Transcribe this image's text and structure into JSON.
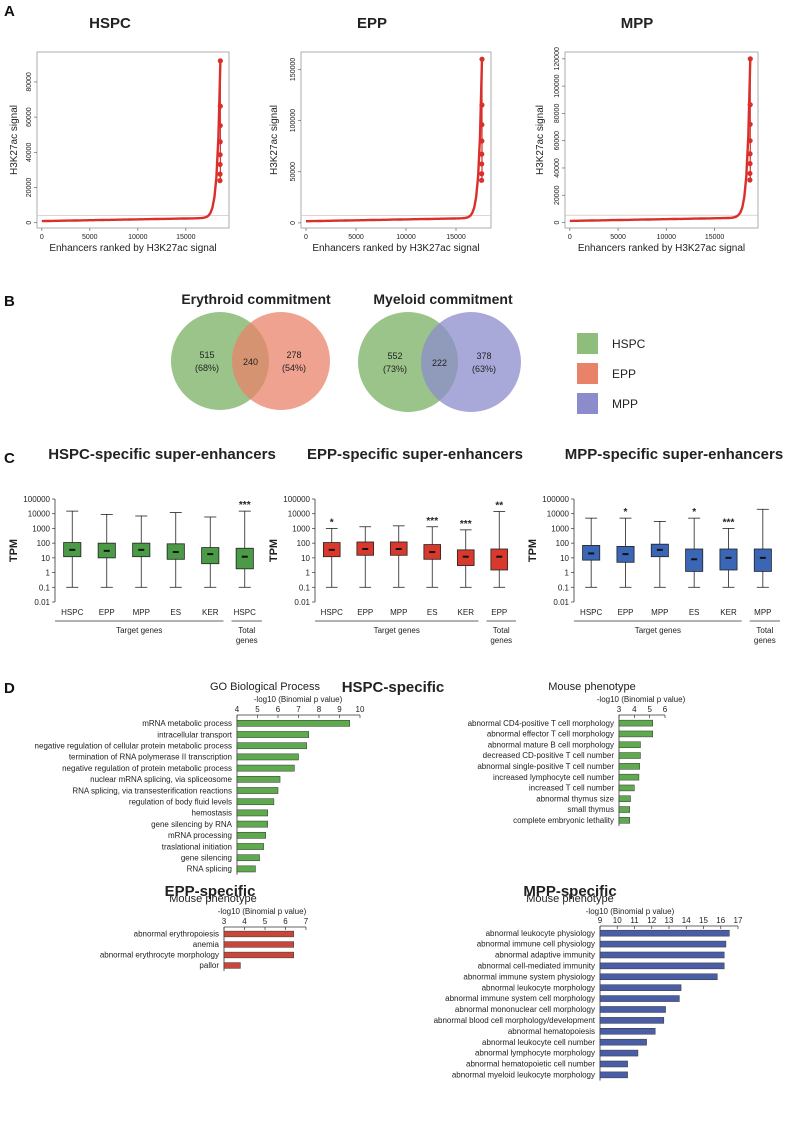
{
  "panel_labels": {
    "a": "A",
    "b": "B",
    "c": "C",
    "d": "D"
  },
  "chart_data": [
    {
      "id": "A-HSPC",
      "type": "scatter",
      "title": "HSPC",
      "xlabel": "Enhancers ranked by H3K27ac signal",
      "ylabel": "H3K27ac signal",
      "xticks": [
        0,
        5000,
        10000,
        15000
      ],
      "xlim": [
        -500,
        19500
      ],
      "yticks": [
        0,
        20000,
        40000,
        60000,
        80000
      ],
      "ylim": [
        -3000,
        97000
      ],
      "n": 18600,
      "max": 92000,
      "color": "#d9302c"
    },
    {
      "id": "A-EPP",
      "type": "scatter",
      "title": "EPP",
      "xlabel": "Enhancers ranked by H3K27ac signal",
      "ylabel": "H3K27ac signal",
      "xticks": [
        0,
        5000,
        10000,
        15000
      ],
      "xlim": [
        -500,
        18500
      ],
      "yticks": [
        0,
        50000,
        100000,
        150000
      ],
      "ylim": [
        -5000,
        167000
      ],
      "n": 17600,
      "max": 160000,
      "color": "#d9302c"
    },
    {
      "id": "A-MPP",
      "type": "scatter",
      "title": "MPP",
      "xlabel": "Enhancers ranked by H3K27ac signal",
      "ylabel": "H3K27ac signal",
      "xticks": [
        0,
        5000,
        10000,
        15000
      ],
      "xlim": [
        -500,
        19500
      ],
      "yticks": [
        0,
        20000,
        40000,
        60000,
        80000,
        100000,
        120000
      ],
      "ylim": [
        -4000,
        125000
      ],
      "n": 18700,
      "max": 120000,
      "color": "#d9302c"
    },
    {
      "id": "B-erythroid",
      "type": "venn",
      "title": "Erythroid commitment",
      "sets": [
        {
          "name": "HSPC",
          "count": "515",
          "pct": "(68%)",
          "color": "#8fbe7c"
        },
        {
          "name": "EPP",
          "count": "278",
          "pct": "(54%)",
          "color": "#e8836a"
        }
      ],
      "overlap": "240"
    },
    {
      "id": "B-myeloid",
      "type": "venn",
      "title": "Myeloid commitment",
      "sets": [
        {
          "name": "HSPC",
          "count": "552",
          "pct": "(73%)",
          "color": "#8fbe7c"
        },
        {
          "name": "MPP",
          "count": "378",
          "pct": "(63%)",
          "color": "#8c8ccc"
        }
      ],
      "overlap": "222"
    },
    {
      "id": "C-HSPC",
      "type": "boxplot",
      "title": "HSPC-specific super-enhancers",
      "ylabel": "TPM",
      "ylog": true,
      "yticks": [
        "0.01",
        "0.1",
        "1",
        "10",
        "100",
        "1000",
        "10000",
        "100000"
      ],
      "color": "#4a9a47",
      "boxes": [
        {
          "label": "HSPC",
          "q1": 12,
          "median": 35,
          "q3": 110,
          "min": 0.1,
          "max": 15000,
          "sig": ""
        },
        {
          "label": "EPP",
          "q1": 10,
          "median": 30,
          "q3": 100,
          "min": 0.1,
          "max": 9000,
          "sig": ""
        },
        {
          "label": "MPP",
          "q1": 12,
          "median": 35,
          "q3": 100,
          "min": 0.1,
          "max": 7000,
          "sig": ""
        },
        {
          "label": "ES",
          "q1": 8,
          "median": 25,
          "q3": 90,
          "min": 0.1,
          "max": 12000,
          "sig": ""
        },
        {
          "label": "KER",
          "q1": 4,
          "median": 18,
          "q3": 50,
          "min": 0.1,
          "max": 6000,
          "sig": ""
        },
        {
          "label": "HSPC",
          "q1": 1.8,
          "median": 12,
          "q3": 45,
          "min": 0.1,
          "max": 15000,
          "sig": "***"
        }
      ],
      "group_label": "Target genes",
      "total_label": "Total genes"
    },
    {
      "id": "C-EPP",
      "type": "boxplot",
      "title": "EPP-specific super-enhancers",
      "ylabel": "TPM",
      "ylog": true,
      "yticks": [
        "0.01",
        "0.1",
        "1",
        "10",
        "100",
        "1000",
        "10000",
        "100000"
      ],
      "color": "#d8392c",
      "boxes": [
        {
          "label": "HSPC",
          "q1": 12,
          "median": 35,
          "q3": 110,
          "min": 0.1,
          "max": 1000,
          "sig": "*"
        },
        {
          "label": "EPP",
          "q1": 15,
          "median": 40,
          "q3": 120,
          "min": 0.1,
          "max": 1300,
          "sig": ""
        },
        {
          "label": "MPP",
          "q1": 15,
          "median": 40,
          "q3": 120,
          "min": 0.1,
          "max": 1500,
          "sig": ""
        },
        {
          "label": "ES",
          "q1": 8,
          "median": 25,
          "q3": 80,
          "min": 0.1,
          "max": 1300,
          "sig": "***"
        },
        {
          "label": "KER",
          "q1": 3,
          "median": 12,
          "q3": 35,
          "min": 0.1,
          "max": 800,
          "sig": "***"
        },
        {
          "label": "EPP",
          "q1": 1.5,
          "median": 12,
          "q3": 40,
          "min": 0.1,
          "max": 14000,
          "sig": "**"
        }
      ],
      "group_label": "Target genes",
      "total_label": "Total genes"
    },
    {
      "id": "C-MPP",
      "type": "boxplot",
      "title": "MPP-specific super-enhancers",
      "ylabel": "TPM",
      "ylog": true,
      "yticks": [
        "0.01",
        "0.1",
        "1",
        "10",
        "100",
        "1000",
        "10000",
        "100000"
      ],
      "color": "#3a66b5",
      "boxes": [
        {
          "label": "HSPC",
          "q1": 7,
          "median": 20,
          "q3": 70,
          "min": 0.1,
          "max": 5000,
          "sig": ""
        },
        {
          "label": "EPP",
          "q1": 5,
          "median": 18,
          "q3": 60,
          "min": 0.1,
          "max": 5000,
          "sig": "*"
        },
        {
          "label": "MPP",
          "q1": 12,
          "median": 35,
          "q3": 85,
          "min": 0.1,
          "max": 3000,
          "sig": ""
        },
        {
          "label": "ES",
          "q1": 1.2,
          "median": 8,
          "q3": 40,
          "min": 0.1,
          "max": 5000,
          "sig": "*"
        },
        {
          "label": "KER",
          "q1": 1.5,
          "median": 10,
          "q3": 40,
          "min": 0.1,
          "max": 1000,
          "sig": "***"
        },
        {
          "label": "MPP",
          "q1": 1.2,
          "median": 10,
          "q3": 40,
          "min": 0.1,
          "max": 20000,
          "sig": ""
        }
      ],
      "group_label": "Target genes",
      "total_label": "Total genes"
    },
    {
      "id": "D-HSPC-GO",
      "type": "bar",
      "orientation": "horizontal",
      "title": "GO Biological Process",
      "xlabel": "-log10 (Binomial p value)",
      "xticks": [
        4,
        5,
        6,
        7,
        8,
        9,
        10
      ],
      "xlim": [
        4,
        10
      ],
      "color": "#5faa4e",
      "categories": [
        "mRNA metabolic process",
        "intracellular transport",
        "negative regulation of cellular protein metabolic process",
        "termination of RNA polymerase II transcription",
        "negative regulation of  protein metabolic process",
        "nuclear mRNA splicing, via spliceosome",
        "RNA splicing, via transesterification reactions",
        "regulation of body fluid levels",
        "hemostasis",
        "gene silencing by RNA",
        "mRNA processing",
        "traslational initiation",
        "gene silencing",
        "RNA splicing"
      ],
      "values": [
        9.5,
        7.5,
        7.4,
        7.0,
        6.8,
        6.1,
        6.0,
        5.8,
        5.5,
        5.5,
        5.4,
        5.3,
        5.1,
        4.9
      ]
    },
    {
      "id": "D-HSPC-MP",
      "type": "bar",
      "orientation": "horizontal",
      "title": "Mouse phenotype",
      "xlabel": "-log10 (Binomial p value)",
      "xticks": [
        3,
        4,
        5,
        6
      ],
      "xlim": [
        3,
        6
      ],
      "color": "#5faa4e",
      "categories": [
        "abnormal CD4-positive T cell morphology",
        "abnormal effector T cell morphology",
        "abnormal mature B cell morphology",
        "decreased CD-positive T cell number",
        "abnormal single-positive T cell number",
        "increased lymphocyte cell number",
        "increased T cell number",
        "abnormal thymus size",
        "small thymus",
        "complete embryonic lethality"
      ],
      "values": [
        5.2,
        5.2,
        4.4,
        4.4,
        4.35,
        4.3,
        4.0,
        3.75,
        3.7,
        3.7
      ]
    },
    {
      "id": "D-EPP-MP",
      "type": "bar",
      "orientation": "horizontal",
      "title": "Mouse phenotype",
      "xlabel": "-log10 (Binomial p value)",
      "xticks": [
        3,
        4,
        5,
        6,
        7
      ],
      "xlim": [
        3,
        7
      ],
      "color": "#c9473a",
      "categories": [
        "abnormal erythropoiesis",
        "anemia",
        "abnormal erythrocyte morphology",
        "pallor"
      ],
      "values": [
        6.4,
        6.4,
        6.4,
        3.8
      ]
    },
    {
      "id": "D-MPP-MP",
      "type": "bar",
      "orientation": "horizontal",
      "title": "Mouse phenotype",
      "xlabel": "-log10 (Binomial p value)",
      "xticks": [
        9,
        10,
        11,
        12,
        13,
        14,
        15,
        16,
        17
      ],
      "xlim": [
        9,
        17
      ],
      "color": "#4a5ea8",
      "categories": [
        "abnormal leukocyte physiology",
        "abnormal immune cell physiology",
        "abnormal adaptive immunity",
        "abnormal cell-mediated immunity",
        "abnormal immune system physiology",
        "abnormal leukocyte morphology",
        "abnormal immune system cell morphology",
        "abnormal mononuclear cell morphology",
        "abnormal blood cell morphology/development",
        "abnormal hematopoiesis",
        "abnormal leukocyte cell number",
        "abnormal lymphocyte morphology",
        "abnormal hematopoietic cell number",
        "abnormal myeloid leukocyte morphology"
      ],
      "values": [
        16.5,
        16.3,
        16.2,
        16.2,
        15.8,
        13.7,
        13.6,
        12.8,
        12.7,
        12.2,
        11.7,
        11.2,
        10.6,
        10.6
      ]
    }
  ],
  "legend": [
    {
      "name": "HSPC",
      "color": "#8fbe7c"
    },
    {
      "name": "EPP",
      "color": "#e8836a"
    },
    {
      "name": "MPP",
      "color": "#8c8ccc"
    }
  ],
  "section_d": {
    "hspc_title": "HSPC-specific",
    "epp_title": "EPP-specific",
    "mpp_title": "MPP-specific"
  }
}
